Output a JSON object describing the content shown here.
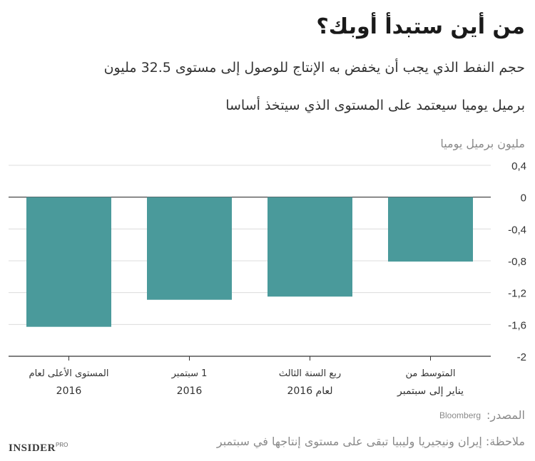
{
  "header": {
    "title": "من أين ستبدأ أوبك؟",
    "subtitle_line1": "حجم النفط الذي يجب أن يخفض به الإنتاج للوصول إلى مستوى 32.5 مليون",
    "subtitle_line2": "برميل يوميا سيعتمد على المستوى الذي سيتخذ أساسا"
  },
  "footer": {
    "source_label": "المصدر:",
    "source_value": "Bloomberg",
    "note": "ملاحظة: إيران ونيجيريا وليبيا تبقى على مستوى إنتاجها في سبتمبر",
    "logo_main": "INSIDER",
    "logo_sup": "PRO"
  },
  "chart_data": {
    "type": "bar",
    "ylabel": "مليون برميل يوميا",
    "ylim": [
      -2,
      0.4
    ],
    "yticks": [
      0.4,
      0,
      -0.4,
      -0.8,
      -1.2,
      -1.6,
      -2
    ],
    "ytick_labels": [
      "0,4",
      "0",
      "-0,4",
      "-0,8",
      "-1,2",
      "-1,6",
      "-2"
    ],
    "grid": true,
    "categories": [
      [
        "المستوى الأعلى لعام",
        "2016"
      ],
      [
        "1 سبتمبر",
        "2016"
      ],
      [
        "ربع السنة الثالث",
        "لعام 2016"
      ],
      [
        "المتوسط من",
        "يناير إلى سبتمبر"
      ]
    ],
    "values": [
      -1.63,
      -1.29,
      -1.25,
      -0.81
    ],
    "bar_color": "#4a9a9b"
  }
}
